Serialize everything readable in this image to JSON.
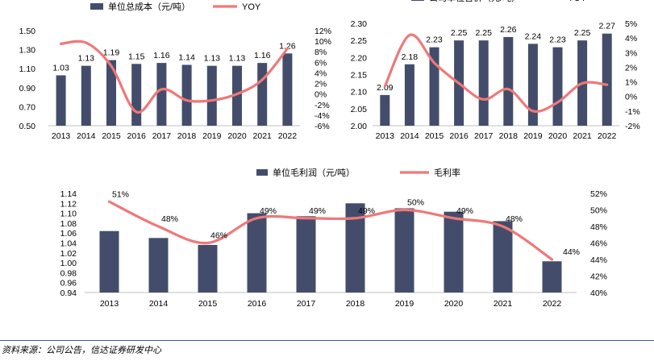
{
  "colors": {
    "bar": "#434d6b",
    "line": "#f07878",
    "axis": "#888888"
  },
  "source": "资料来源：公司公告，信达证券研发中心",
  "chart_data": [
    {
      "type": "bar",
      "id": "chart1",
      "categories": [
        "2013",
        "2014",
        "2015",
        "2016",
        "2017",
        "2018",
        "2019",
        "2020",
        "2021",
        "2022"
      ],
      "series": [
        {
          "name": "单位总成本（元/吨）",
          "type": "bar",
          "axis": "left",
          "values": [
            1.03,
            1.13,
            1.19,
            1.15,
            1.16,
            1.14,
            1.13,
            1.13,
            1.16,
            1.26
          ]
        },
        {
          "name": "YOY",
          "type": "line",
          "axis": "right",
          "values": [
            9.5,
            9.7,
            5.3,
            -3.4,
            0.9,
            -1.2,
            -1.2,
            0.0,
            2.7,
            8.6
          ]
        }
      ],
      "data_labels": [
        "1.03",
        "1.13",
        "1.19",
        "1.15",
        "1.16",
        "1.14",
        "1.13",
        "1.13",
        "1.16",
        "1.26"
      ],
      "ylim": [
        0.5,
        1.5
      ],
      "yticks": [
        "1.50",
        "1.30",
        "1.10",
        "0.90",
        "0.70",
        "0.50"
      ],
      "y2lim": [
        -6,
        12
      ],
      "y2ticks": [
        "12%",
        "10%",
        "8%",
        "6%",
        "4%",
        "2%",
        "0%",
        "-2%",
        "-4%",
        "-6%"
      ]
    },
    {
      "type": "bar",
      "id": "chart2",
      "categories": [
        "2013",
        "2014",
        "2015",
        "2016",
        "2017",
        "2018",
        "2019",
        "2020",
        "2021",
        "2022"
      ],
      "series": [
        {
          "name": "公司单位售价（元/吨）",
          "type": "bar",
          "axis": "left",
          "values": [
            2.09,
            2.18,
            2.23,
            2.25,
            2.25,
            2.26,
            2.24,
            2.23,
            2.25,
            2.27
          ]
        },
        {
          "name": "YOY",
          "type": "line",
          "axis": "right",
          "values": [
            0.7,
            4.2,
            2.3,
            0.9,
            -0.2,
            0.5,
            -1.0,
            -0.4,
            0.9,
            0.8
          ]
        }
      ],
      "data_labels": [
        "2.09",
        "2.18",
        "2.23",
        "2.25",
        "2.25",
        "2.26",
        "2.24",
        "2.23",
        "2.25",
        "2.27"
      ],
      "ylim": [
        2.0,
        2.3
      ],
      "yticks": [
        "2.30",
        "2.25",
        "2.20",
        "2.15",
        "2.10",
        "2.05",
        "2.00"
      ],
      "y2lim": [
        -2,
        5
      ],
      "y2ticks": [
        "5%",
        "4%",
        "3%",
        "2%",
        "1%",
        "0%",
        "-1%",
        "-2%"
      ]
    },
    {
      "type": "bar",
      "id": "chart3",
      "categories": [
        "2013",
        "2014",
        "2015",
        "2016",
        "2017",
        "2018",
        "2019",
        "2020",
        "2021",
        "2022"
      ],
      "series": [
        {
          "name": "单位毛利润（元/吨）",
          "type": "bar",
          "axis": "left",
          "values": [
            1.064,
            1.05,
            1.036,
            1.1,
            1.094,
            1.12,
            1.11,
            1.103,
            1.084,
            1.003
          ]
        },
        {
          "name": "毛利率",
          "type": "line",
          "axis": "right",
          "values": [
            51,
            48,
            46,
            49,
            49,
            49,
            50,
            49,
            48,
            44
          ]
        }
      ],
      "line_labels": [
        "51%",
        "48%",
        "46%",
        "49%",
        "49%",
        "49%",
        "50%",
        "49%",
        "48%",
        "44%"
      ],
      "ylim": [
        0.94,
        1.14
      ],
      "yticks": [
        "1.14",
        "1.12",
        "1.10",
        "1.08",
        "1.06",
        "1.04",
        "1.02",
        "1.00",
        "0.98",
        "0.96",
        "0.94"
      ],
      "y2lim": [
        40,
        52
      ],
      "y2ticks": [
        "52%",
        "50%",
        "48%",
        "46%",
        "44%",
        "42%",
        "40%"
      ]
    }
  ]
}
